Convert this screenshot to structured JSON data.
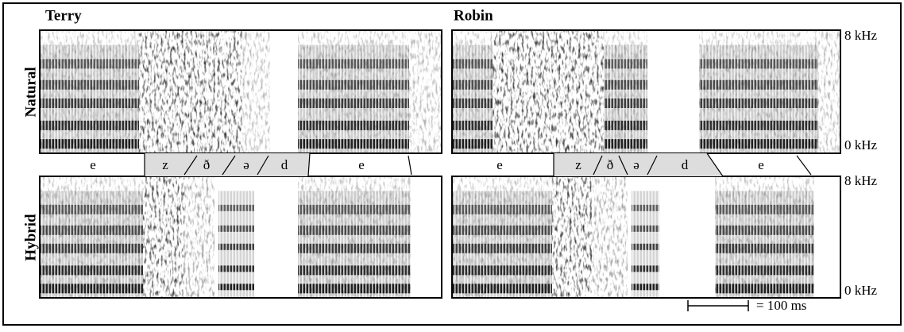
{
  "speakers": [
    {
      "name": "Terry",
      "segments": [
        "e",
        "z",
        "ð",
        "ə",
        "d",
        "e"
      ]
    },
    {
      "name": "Robin",
      "segments": [
        "e",
        "z",
        "ð",
        "ə",
        "d",
        "e"
      ]
    }
  ],
  "rows": [
    "Natural",
    "Hybrid"
  ],
  "frequency_labels": {
    "top": [
      "8 kHz",
      "0 kHz"
    ],
    "bottom": [
      "8 kHz",
      "0 kHz"
    ]
  },
  "scale_bar": {
    "label": "= 100 ms"
  }
}
